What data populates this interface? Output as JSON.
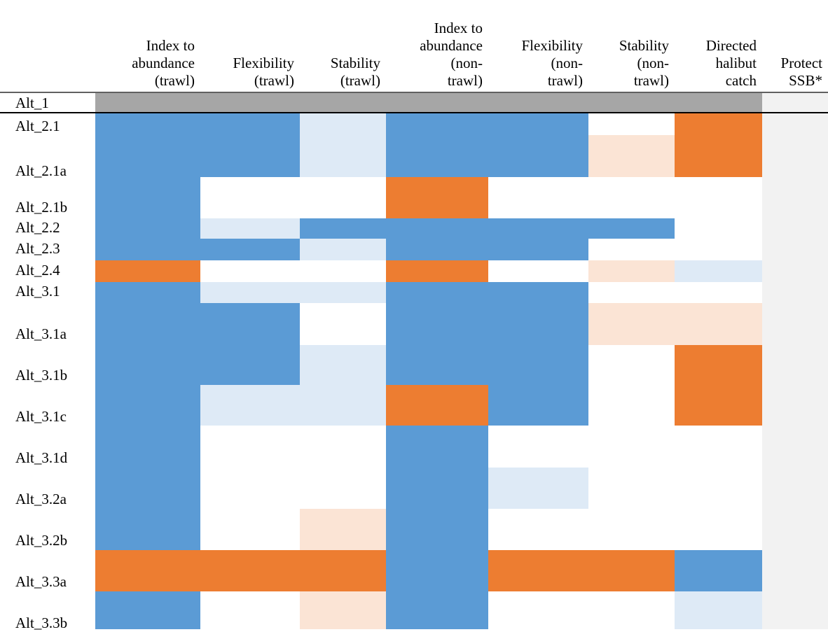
{
  "chart_data": {
    "type": "heatmap",
    "columns": [
      {
        "label_lines": [
          "Index to",
          "abundance",
          "(trawl)"
        ]
      },
      {
        "label_lines": [
          "Flexibility",
          "(trawl)"
        ]
      },
      {
        "label_lines": [
          "Stability",
          "(trawl)"
        ]
      },
      {
        "label_lines": [
          "Index to",
          "abundance",
          "(non-",
          "trawl)"
        ]
      },
      {
        "label_lines": [
          "Flexibility",
          "(non-",
          "trawl)"
        ]
      },
      {
        "label_lines": [
          "Stability",
          "(non-",
          "trawl)"
        ]
      },
      {
        "label_lines": [
          "Directed",
          "halibut",
          "catch"
        ]
      },
      {
        "label_lines": [
          "Protect",
          "SSB*"
        ]
      }
    ],
    "legend_colors": {
      "B": "#5b9bd5",
      "b": "#deeaf6",
      "O": "#ed7d31",
      "o": "#fbe4d5",
      "G": "#a6a6a6",
      "W": "#ffffff",
      "P": "#f2f2f2"
    },
    "rows": [
      {
        "label": "Alt_1",
        "cells": [
          "G",
          "G",
          "G",
          "G",
          "G",
          "G",
          "G",
          "P"
        ]
      },
      {
        "label": "Alt_2.1",
        "cells": [
          "B",
          "B",
          "b",
          "B",
          "B",
          "W",
          "O",
          "P"
        ]
      },
      {
        "label": "Alt_2.1a",
        "cells": [
          "B",
          "B",
          "b",
          "B",
          "B",
          "o",
          "O",
          "P"
        ]
      },
      {
        "label": "Alt_2.1b",
        "cells": [
          "B",
          "W",
          "W",
          "O",
          "W",
          "W",
          "W",
          "P"
        ]
      },
      {
        "label": "Alt_2.2",
        "cells": [
          "B",
          "b",
          "B",
          "B",
          "B",
          "B",
          "W",
          "P"
        ]
      },
      {
        "label": "Alt_2.3",
        "cells": [
          "B",
          "B",
          "b",
          "B",
          "B",
          "W",
          "W",
          "P"
        ]
      },
      {
        "label": "Alt_2.4",
        "cells": [
          "O",
          "W",
          "W",
          "O",
          "W",
          "o",
          "b",
          "P"
        ]
      },
      {
        "label": "Alt_3.1",
        "cells": [
          "B",
          "b",
          "b",
          "B",
          "B",
          "W",
          "W",
          "P"
        ]
      },
      {
        "label": "Alt_3.1a",
        "cells": [
          "B",
          "B",
          "W",
          "B",
          "B",
          "o",
          "o",
          "P"
        ]
      },
      {
        "label": "Alt_3.1b",
        "cells": [
          "B",
          "B",
          "b",
          "B",
          "B",
          "W",
          "O",
          "P"
        ]
      },
      {
        "label": "Alt_3.1c",
        "cells": [
          "B",
          "b",
          "b",
          "O",
          "B",
          "W",
          "O",
          "P"
        ]
      },
      {
        "label": "Alt_3.1d",
        "cells": [
          "B",
          "W",
          "W",
          "B",
          "W",
          "W",
          "W",
          "P"
        ]
      },
      {
        "label": "Alt_3.2a",
        "cells": [
          "B",
          "W",
          "W",
          "B",
          "b",
          "W",
          "W",
          "P"
        ]
      },
      {
        "label": "Alt_3.2b",
        "cells": [
          "B",
          "W",
          "o",
          "B",
          "W",
          "W",
          "W",
          "P"
        ]
      },
      {
        "label": "Alt_3.3a",
        "cells": [
          "O",
          "O",
          "O",
          "B",
          "O",
          "O",
          "B",
          "P"
        ]
      },
      {
        "label": "Alt_3.3b",
        "cells": [
          "B",
          "W",
          "o",
          "B",
          "W",
          "W",
          "b",
          "P"
        ]
      }
    ]
  }
}
